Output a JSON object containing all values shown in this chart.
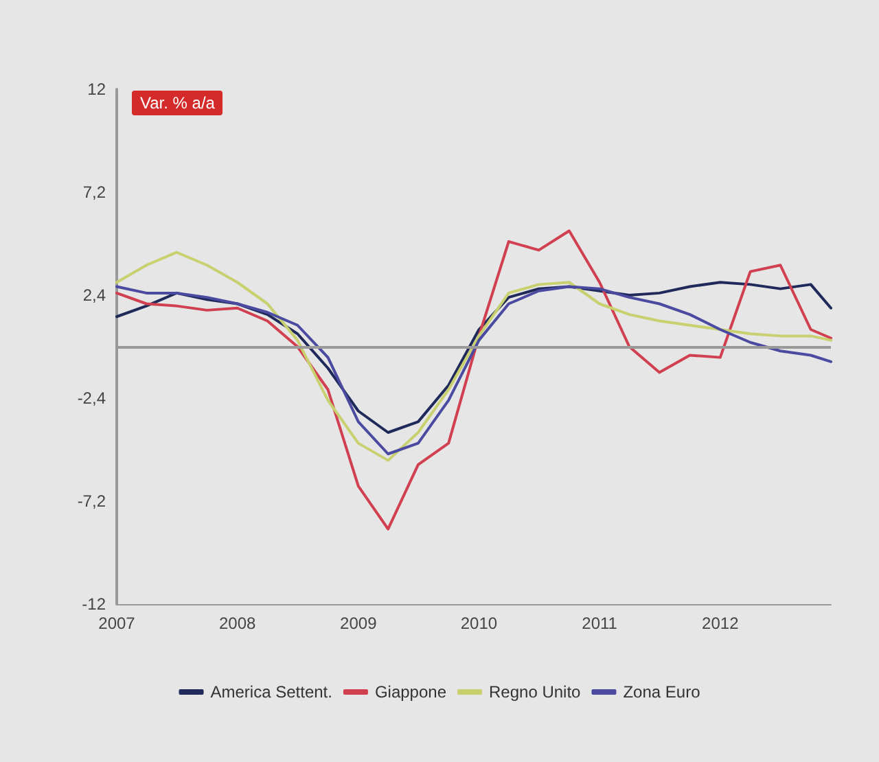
{
  "chart_data": {
    "type": "line",
    "x": [
      "2007-01",
      "2007-04",
      "2007-07",
      "2007-10",
      "2008-01",
      "2008-04",
      "2008-07",
      "2008-10",
      "2009-01",
      "2009-04",
      "2009-07",
      "2009-10",
      "2010-01",
      "2010-04",
      "2010-07",
      "2010-10",
      "2011-01",
      "2011-04",
      "2011-07",
      "2011-10",
      "2012-01",
      "2012-04",
      "2012-07",
      "2012-10",
      "2012-12"
    ],
    "series": [
      {
        "name": "America Settent.",
        "color": "#1f2a5a",
        "values": [
          1.4,
          1.9,
          2.5,
          2.2,
          2.0,
          1.5,
          0.6,
          -1.0,
          -3.0,
          -4.0,
          -3.5,
          -1.8,
          0.8,
          2.3,
          2.7,
          2.8,
          2.6,
          2.4,
          2.5,
          2.8,
          3.0,
          2.9,
          2.7,
          2.9,
          1.8
        ]
      },
      {
        "name": "Giappone",
        "color": "#d04050",
        "values": [
          2.5,
          2.0,
          1.9,
          1.7,
          1.8,
          1.2,
          0.0,
          -2.0,
          -6.5,
          -8.5,
          -5.5,
          -4.5,
          0.5,
          4.9,
          4.5,
          5.4,
          3.0,
          0.0,
          -1.2,
          -0.4,
          -0.5,
          3.5,
          3.8,
          0.8,
          0.4
        ]
      },
      {
        "name": "Regno Unito",
        "color": "#c8d070",
        "values": [
          3.0,
          3.8,
          4.4,
          3.8,
          3.0,
          2.0,
          0.3,
          -2.5,
          -4.5,
          -5.3,
          -4.0,
          -2.0,
          0.5,
          2.5,
          2.9,
          3.0,
          2.0,
          1.5,
          1.2,
          1.0,
          0.8,
          0.6,
          0.5,
          0.5,
          0.3
        ]
      },
      {
        "name": "Zona Euro",
        "color": "#4a4aa0",
        "values": [
          2.8,
          2.5,
          2.5,
          2.3,
          2.0,
          1.6,
          1.0,
          -0.5,
          -3.5,
          -5.0,
          -4.5,
          -2.5,
          0.3,
          2.0,
          2.6,
          2.8,
          2.7,
          2.3,
          2.0,
          1.5,
          0.8,
          0.2,
          -0.2,
          -0.4,
          -0.7
        ]
      }
    ],
    "annotations": [
      "Var. % a/a"
    ],
    "xlim": [
      "2007-01",
      "2012-12"
    ],
    "xticks": [
      "2007",
      "2008",
      "2009",
      "2010",
      "2011",
      "2012"
    ],
    "ylim": [
      -12,
      12
    ],
    "yticks": [
      -12,
      {
        "value": -7.2,
        "label": "-7,2"
      },
      {
        "value": -2.4,
        "label": "-2,4"
      },
      {
        "value": 2.4,
        "label": "2,4"
      },
      {
        "value": 7.2,
        "label": "7,2"
      },
      12
    ],
    "ref_lines": [
      {
        "axis": "y",
        "value": 0,
        "label": null,
        "color": "#999999"
      }
    ],
    "grid": false,
    "legend": "bottom",
    "marker": "none",
    "line_style": "solid"
  }
}
